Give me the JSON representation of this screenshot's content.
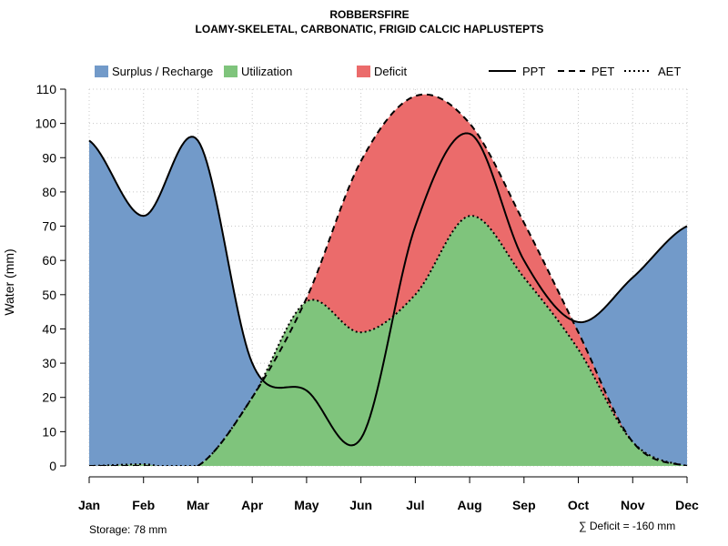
{
  "chart_data": {
    "type": "area",
    "title": "ROBBERSFIRE",
    "subtitle": "LOAMY-SKELETAL, CARBONATIC, FRIGID CALCIC HAPLUSTEPTS",
    "xlabel": "",
    "ylabel": "Water (mm)",
    "ylim": [
      0,
      110
    ],
    "yticks": [
      0,
      10,
      20,
      30,
      40,
      50,
      60,
      70,
      80,
      90,
      100,
      110
    ],
    "categories": [
      "Jan",
      "Feb",
      "Mar",
      "Apr",
      "May",
      "Jun",
      "Jul",
      "Aug",
      "Sep",
      "Oct",
      "Nov",
      "Dec"
    ],
    "grid": true,
    "series": [
      {
        "name": "PPT",
        "style": "solid",
        "values": [
          95,
          73,
          95,
          30,
          22,
          8,
          70,
          97,
          60,
          42,
          55,
          70
        ]
      },
      {
        "name": "PET",
        "style": "dashed",
        "values": [
          0,
          0,
          0,
          20,
          49,
          89,
          108,
          100,
          71,
          39,
          7,
          0
        ]
      },
      {
        "name": "AET",
        "style": "dotted",
        "values": [
          0,
          0.5,
          0,
          20,
          48,
          39,
          50,
          73,
          55,
          34,
          7,
          0
        ]
      }
    ],
    "areas": [
      {
        "name": "Surplus / Recharge",
        "color": "#729ac9"
      },
      {
        "name": "Utilization",
        "color": "#7fc47c"
      },
      {
        "name": "Deficit",
        "color": "#eb6b6b"
      }
    ],
    "legend": [
      "Surplus / Recharge",
      "Utilization",
      "Deficit",
      "PPT",
      "PET",
      "AET"
    ],
    "legend_position": "top",
    "annotations": {
      "storage": "Storage: 78 mm",
      "deficit": "∑ Deficit = -160 mm"
    }
  }
}
